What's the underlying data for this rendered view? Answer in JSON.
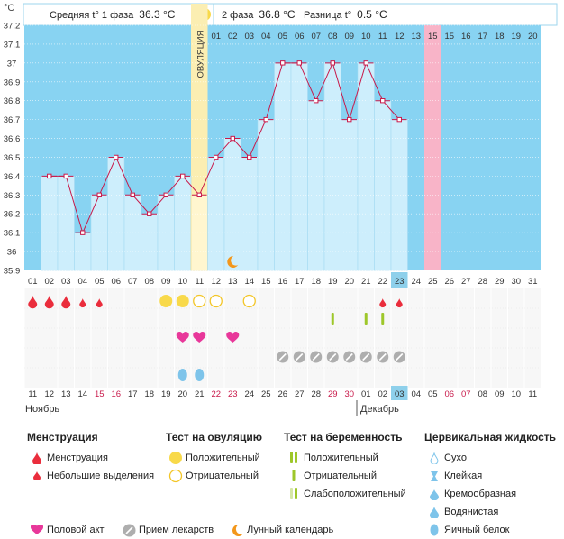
{
  "header": {
    "avg1_label": "Средняя t° 1 фаза",
    "avg1_value": "36.3 °C",
    "avg2_label": "2 фаза",
    "avg2_value": "36.8 °C",
    "diff_label": "Разница t°",
    "diff_value": "0.5 °C"
  },
  "colors": {
    "sky": "#88d3f2",
    "bar": "#cdeefc",
    "bar_edge": "#a5dbf2",
    "line": "#c8194a",
    "ovulation": "#fbeeb2",
    "ovulation_marker": "#f8d94a",
    "day15": "#f8b4c8",
    "highlight": "#8ed0eb",
    "heart": "#e8389a",
    "drop": "#ea2d3c",
    "pill": "#aeaeae",
    "preg": "#9ec72a",
    "cervical": "#7ec4ea",
    "moon": "#f3971b"
  },
  "chart_data": {
    "type": "bar",
    "ylabel": "°C",
    "ylim": [
      35.9,
      37.2
    ],
    "yticks": [
      "37.2",
      "37.1",
      "37",
      "36.9",
      "36.8",
      "36.7",
      "36.6",
      "36.5",
      "36.4",
      "36.3",
      "36.2",
      "36.1",
      "36",
      "35.9"
    ],
    "ovulation_label": "ОВУЛЯЦИЯ",
    "ovulation_index": 10,
    "day15_index": 14,
    "cycle_days": [
      "01",
      "02",
      "03",
      "04",
      "05",
      "06",
      "07",
      "08",
      "09",
      "10",
      "11",
      "01",
      "02",
      "03",
      "04",
      "05",
      "06",
      "07",
      "08",
      "09",
      "10",
      "11",
      "12",
      "13",
      "14",
      "15",
      "16",
      "17",
      "18",
      "19",
      "20"
    ],
    "top_day_labels": [
      "",
      "",
      "",
      "",
      "",
      "",
      "",
      "",
      "",
      "",
      "",
      "01",
      "02",
      "03",
      "04",
      "05",
      "06",
      "07",
      "08",
      "09",
      "10",
      "11",
      "12",
      "13",
      "15",
      "15",
      "16",
      "17",
      "18",
      "19",
      "20"
    ],
    "bottom_cycle_labels": [
      "01",
      "02",
      "03",
      "04",
      "05",
      "06",
      "07",
      "08",
      "09",
      "10",
      "11",
      "12",
      "13",
      "14",
      "15",
      "16",
      "17",
      "18",
      "19",
      "20",
      "21",
      "22",
      "23",
      "24",
      "25",
      "26",
      "27",
      "28",
      "29",
      "30",
      "31"
    ],
    "calendar_dates": [
      "11",
      "12",
      "13",
      "14",
      "15",
      "16",
      "17",
      "18",
      "19",
      "20",
      "21",
      "22",
      "23",
      "24",
      "25",
      "26",
      "27",
      "28",
      "29",
      "30",
      "01",
      "02",
      "03",
      "04",
      "05",
      "06",
      "07",
      "08",
      "09",
      "10",
      "11"
    ],
    "red_date_indices": [
      4,
      5,
      11,
      12,
      18,
      19,
      25,
      26
    ],
    "highlight_index": 22,
    "highlight_index_2": 25,
    "values": [
      null,
      36.4,
      36.4,
      36.1,
      36.3,
      36.5,
      36.3,
      36.2,
      36.3,
      36.4,
      36.3,
      36.5,
      36.6,
      36.5,
      36.7,
      37.0,
      37.0,
      36.8,
      37.0,
      36.7,
      37.0,
      36.8,
      36.7,
      null,
      null,
      null,
      null,
      null,
      null,
      null,
      null
    ],
    "menstruation_indices": [
      0,
      1,
      2
    ],
    "small_discharge_indices": [
      3,
      4,
      21,
      22
    ],
    "ovulation_pos_indices": [
      8,
      9
    ],
    "ovulation_neg_indices": [
      10,
      11,
      13
    ],
    "preg_neg_indices": [
      18,
      20,
      21
    ],
    "intercourse_indices": [
      9,
      10,
      12
    ],
    "pill_indices": [
      15,
      16,
      17,
      18,
      19,
      20,
      21,
      22
    ],
    "cervical_indices": [
      9,
      10
    ],
    "moon_index": 12,
    "month_1": "Ноябрь",
    "month_2": "Декабрь"
  },
  "legend": {
    "menstr": {
      "title": "Менструация",
      "items": [
        "Менструация",
        "Небольшие выделения"
      ]
    },
    "ovtest": {
      "title": "Тест на овуляцию",
      "items": [
        "Положительный",
        "Отрицательный"
      ]
    },
    "pregtest": {
      "title": "Тест на беременность",
      "items": [
        "Положительный",
        "Отрицательный",
        "Слабоположительный"
      ]
    },
    "cervical": {
      "title": "Цервикальная жидкость",
      "items": [
        "Сухо",
        "Клейкая",
        "Кремообразная",
        "Водянистая",
        "Яичный белок"
      ]
    },
    "bottom": [
      "Половой акт",
      "Прием лекарств",
      "Лунный календарь"
    ]
  }
}
